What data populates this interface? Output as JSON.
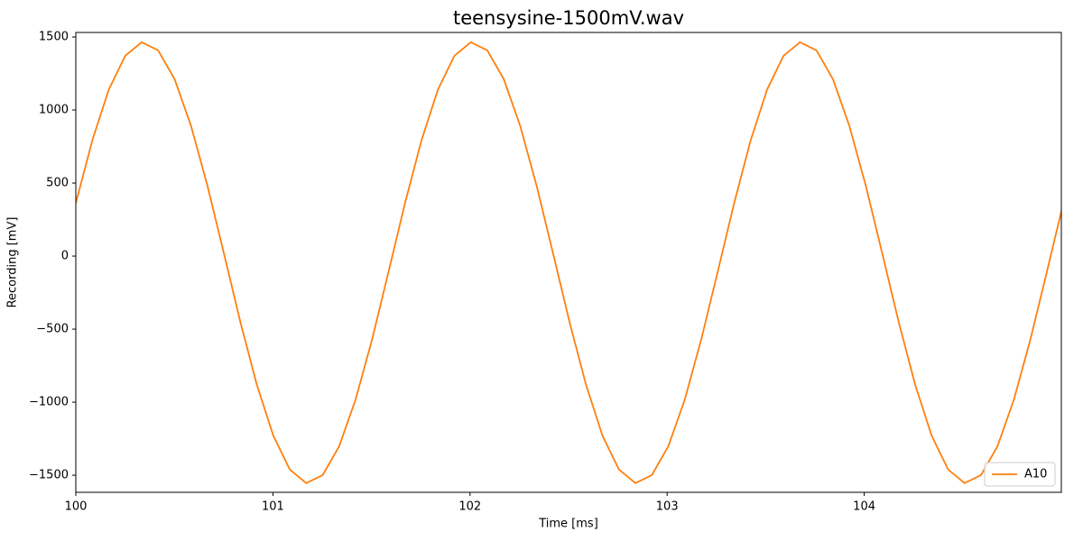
{
  "chart_data": {
    "type": "line",
    "title": "teensysine-1500mV.wav",
    "xlabel": "Time [ms]",
    "ylabel": "Recording [mV]",
    "x": [
      100,
      100.0835,
      100.167,
      100.2505,
      100.334,
      100.4175,
      100.501,
      100.5845,
      100.668,
      100.7515,
      100.835,
      100.9185,
      101.002,
      101.0855,
      101.169,
      101.2525,
      101.336,
      101.4195,
      101.503,
      101.5865,
      101.67,
      101.7535,
      101.837,
      101.9205,
      102.004,
      102.0875,
      102.171,
      102.2545,
      102.338,
      102.4215,
      102.505,
      102.5885,
      102.672,
      102.7555,
      102.839,
      102.9225,
      103.006,
      103.0895,
      103.173,
      103.2565,
      103.34,
      103.4235,
      103.507,
      103.5905,
      103.674,
      103.7575,
      103.841,
      103.9245,
      104.008,
      104.0915,
      104.175,
      104.2585,
      104.342,
      104.4255,
      104.509,
      104.5925,
      104.676,
      104.7595,
      104.843,
      104.9265,
      105.01
    ],
    "series": [
      {
        "name": "A10",
        "color": "#ff7f0e",
        "values": [
          362,
          791,
          1139,
          1371,
          1464,
          1409,
          1212,
          892,
          481,
          18,
          -452,
          -881,
          -1229,
          -1461,
          -1554,
          -1499,
          -1302,
          -982,
          -571,
          -108,
          362,
          791,
          1139,
          1371,
          1464,
          1409,
          1212,
          892,
          481,
          18,
          -452,
          -881,
          -1229,
          -1461,
          -1554,
          -1499,
          -1302,
          -982,
          -571,
          -108,
          362,
          791,
          1139,
          1371,
          1464,
          1409,
          1212,
          892,
          481,
          18,
          -452,
          -881,
          -1229,
          -1461,
          -1554,
          -1499,
          -1302,
          -982,
          -571,
          -108,
          362
        ]
      }
    ],
    "xlim": [
      100,
      105
    ],
    "ylim": [
      -1617,
      1531
    ],
    "xticks": [
      100,
      101,
      102,
      103,
      104
    ],
    "yticks": [
      {
        "value": -1500,
        "label": "−1500"
      },
      {
        "value": -1000,
        "label": "−1000"
      },
      {
        "value": -500,
        "label": "−500"
      },
      0,
      500,
      1000,
      1500
    ],
    "legend": "lower right"
  }
}
